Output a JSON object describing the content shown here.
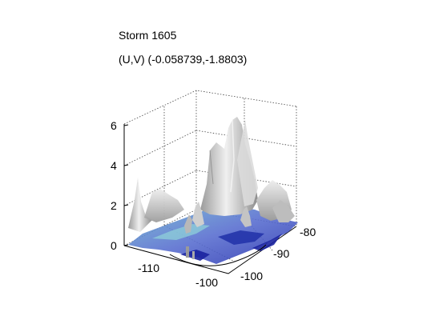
{
  "title": "Storm 1605",
  "subtitle": "(U,V) (-0.058739,-1.8803)",
  "chart_data": {
    "type": "surface",
    "z_ticks": [
      "0",
      "2",
      "4",
      "6"
    ],
    "lon_ticks": [
      "-110",
      "-100"
    ],
    "lat_ticks": [
      "-100",
      "-90",
      "-80"
    ],
    "zlim": [
      0,
      6
    ],
    "grid": true,
    "colors": {
      "surface_light": "#d8d8d8",
      "surface_dark": "#8a8a8a",
      "water_blue": "#4a5fc8",
      "water_cyan": "#7ec8d0",
      "water_dark": "#1a22a0",
      "grid_line": "#444444"
    }
  }
}
